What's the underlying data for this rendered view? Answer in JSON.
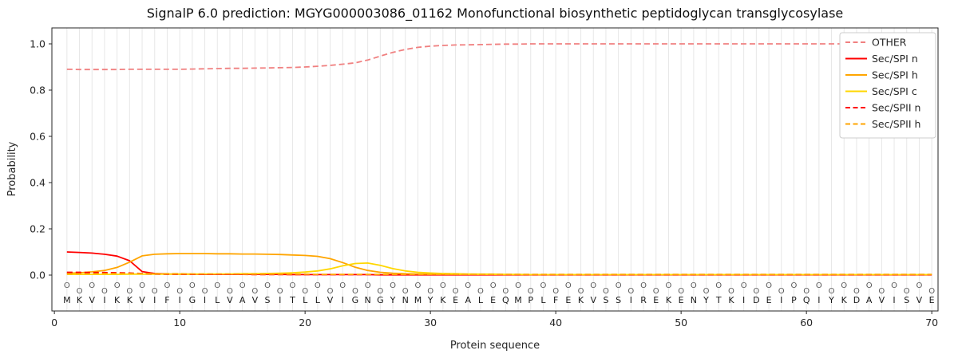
{
  "chart_data": {
    "type": "line",
    "title": "SignalP 6.0 prediction: MGYG000003086_01162 Monofunctional biosynthetic peptidoglycan transglycosylase",
    "xlabel": "Protein sequence",
    "ylabel": "Probability",
    "xlim": [
      -0.2,
      70.5
    ],
    "ylim": [
      -0.155,
      1.069
    ],
    "xticks": [
      0,
      10,
      20,
      30,
      40,
      50,
      60,
      70
    ],
    "yticks": [
      0.0,
      0.2,
      0.4,
      0.6,
      0.8,
      1.0
    ],
    "grid": "vertical-per-residue",
    "gridline_color": "#e7e7e7",
    "legend_position": "upper right",
    "position_marker": "O",
    "sequence": "MKVIKKVIFIGILVAVSITLLVIGNGYNMYKEALEQMPLFEKVSSIREKENYTKIDEIPQIYKDAVISVE",
    "series": [
      {
        "name": "OTHER",
        "color": "#f08080",
        "dash": "dashed",
        "values": [
          0.89,
          0.889,
          0.889,
          0.889,
          0.889,
          0.89,
          0.89,
          0.89,
          0.89,
          0.89,
          0.891,
          0.892,
          0.893,
          0.894,
          0.894,
          0.895,
          0.896,
          0.897,
          0.898,
          0.9,
          0.903,
          0.907,
          0.912,
          0.918,
          0.93,
          0.947,
          0.963,
          0.976,
          0.985,
          0.99,
          0.993,
          0.995,
          0.996,
          0.997,
          0.998,
          0.999,
          0.999,
          1.0,
          1.0,
          1.0,
          1.0,
          1.0,
          1.0,
          1.0,
          1.0,
          1.0,
          1.0,
          1.0,
          1.0,
          1.0,
          1.0,
          1.0,
          1.0,
          1.0,
          1.0,
          1.0,
          1.0,
          1.0,
          1.0,
          1.0,
          1.0,
          1.0,
          1.0,
          1.0,
          1.0,
          1.0,
          1.0,
          1.0,
          1.0,
          1.0
        ]
      },
      {
        "name": "Sec/SPI n",
        "color": "#ff0000",
        "dash": "solid",
        "values": [
          0.1,
          0.098,
          0.095,
          0.09,
          0.082,
          0.062,
          0.015,
          0.007,
          0.005,
          0.004,
          0.004,
          0.003,
          0.003,
          0.003,
          0.003,
          0.003,
          0.003,
          0.003,
          0.002,
          0.002,
          0.002,
          0.002,
          0.002,
          0.002,
          0.002,
          0.001,
          0.001,
          0.001,
          0.001,
          0.001,
          0.001,
          0.001,
          0.001,
          0.001,
          0.001,
          0.001,
          0.001,
          0.001,
          0.001,
          0.001,
          0.001,
          0.001,
          0.001,
          0.001,
          0.001,
          0.001,
          0.001,
          0.001,
          0.001,
          0.001,
          0.001,
          0.001,
          0.001,
          0.001,
          0.001,
          0.001,
          0.001,
          0.001,
          0.001,
          0.001,
          0.001,
          0.001,
          0.001,
          0.001,
          0.001,
          0.001,
          0.001,
          0.001,
          0.001,
          0.001
        ]
      },
      {
        "name": "Sec/SPI h",
        "color": "#ffa500",
        "dash": "solid",
        "values": [
          0.008,
          0.01,
          0.014,
          0.02,
          0.033,
          0.056,
          0.083,
          0.09,
          0.092,
          0.093,
          0.093,
          0.093,
          0.092,
          0.092,
          0.091,
          0.091,
          0.09,
          0.089,
          0.087,
          0.085,
          0.081,
          0.071,
          0.054,
          0.034,
          0.02,
          0.012,
          0.008,
          0.006,
          0.005,
          0.004,
          0.004,
          0.003,
          0.003,
          0.003,
          0.003,
          0.002,
          0.002,
          0.002,
          0.002,
          0.002,
          0.002,
          0.002,
          0.002,
          0.002,
          0.002,
          0.002,
          0.002,
          0.002,
          0.002,
          0.002,
          0.002,
          0.002,
          0.002,
          0.002,
          0.002,
          0.002,
          0.002,
          0.002,
          0.002,
          0.002,
          0.002,
          0.002,
          0.002,
          0.002,
          0.002,
          0.002,
          0.002,
          0.002,
          0.002,
          0.002
        ]
      },
      {
        "name": "Sec/SPI c",
        "color": "#ffd700",
        "dash": "solid",
        "values": [
          0.003,
          0.003,
          0.003,
          0.003,
          0.003,
          0.004,
          0.004,
          0.004,
          0.004,
          0.004,
          0.004,
          0.005,
          0.005,
          0.005,
          0.006,
          0.006,
          0.007,
          0.008,
          0.01,
          0.013,
          0.018,
          0.027,
          0.04,
          0.05,
          0.052,
          0.042,
          0.028,
          0.018,
          0.012,
          0.009,
          0.007,
          0.006,
          0.005,
          0.004,
          0.004,
          0.003,
          0.003,
          0.002,
          0.002,
          0.002,
          0.002,
          0.002,
          0.002,
          0.002,
          0.002,
          0.002,
          0.002,
          0.002,
          0.002,
          0.002,
          0.002,
          0.002,
          0.002,
          0.002,
          0.002,
          0.002,
          0.002,
          0.002,
          0.002,
          0.002,
          0.002,
          0.002,
          0.002,
          0.002,
          0.002,
          0.002,
          0.002,
          0.002,
          0.002,
          0.002
        ]
      },
      {
        "name": "Sec/SPII n",
        "color": "#ff0000",
        "dash": "dashed",
        "values": [
          0.012,
          0.012,
          0.011,
          0.011,
          0.01,
          0.009,
          0.007,
          0.005,
          0.004,
          0.004,
          0.003,
          0.003,
          0.003,
          0.003,
          0.003,
          0.002,
          0.002,
          0.002,
          0.002,
          0.002,
          0.002,
          0.002,
          0.002,
          0.002,
          0.002,
          0.002,
          0.002,
          0.002,
          0.002,
          0.002,
          0.002,
          0.002,
          0.002,
          0.002,
          0.002,
          0.002,
          0.002,
          0.002,
          0.002,
          0.002,
          0.002,
          0.002,
          0.002,
          0.002,
          0.002,
          0.002,
          0.002,
          0.002,
          0.002,
          0.002,
          0.002,
          0.002,
          0.002,
          0.002,
          0.002,
          0.002,
          0.002,
          0.002,
          0.002,
          0.002,
          0.002,
          0.002,
          0.002,
          0.002,
          0.002,
          0.002,
          0.002,
          0.002,
          0.002,
          0.002
        ]
      },
      {
        "name": "Sec/SPII h",
        "color": "#ffa500",
        "dash": "dashed",
        "values": [
          0.006,
          0.006,
          0.006,
          0.007,
          0.007,
          0.007,
          0.007,
          0.006,
          0.006,
          0.006,
          0.005,
          0.005,
          0.005,
          0.005,
          0.004,
          0.004,
          0.004,
          0.004,
          0.004,
          0.004,
          0.003,
          0.003,
          0.003,
          0.003,
          0.003,
          0.003,
          0.003,
          0.003,
          0.003,
          0.003,
          0.003,
          0.003,
          0.003,
          0.003,
          0.003,
          0.003,
          0.003,
          0.003,
          0.003,
          0.003,
          0.003,
          0.003,
          0.003,
          0.003,
          0.003,
          0.003,
          0.003,
          0.003,
          0.003,
          0.003,
          0.003,
          0.003,
          0.003,
          0.003,
          0.003,
          0.003,
          0.003,
          0.003,
          0.003,
          0.003,
          0.003,
          0.003,
          0.003,
          0.003,
          0.003,
          0.003,
          0.003,
          0.003,
          0.003,
          0.003
        ]
      }
    ]
  }
}
